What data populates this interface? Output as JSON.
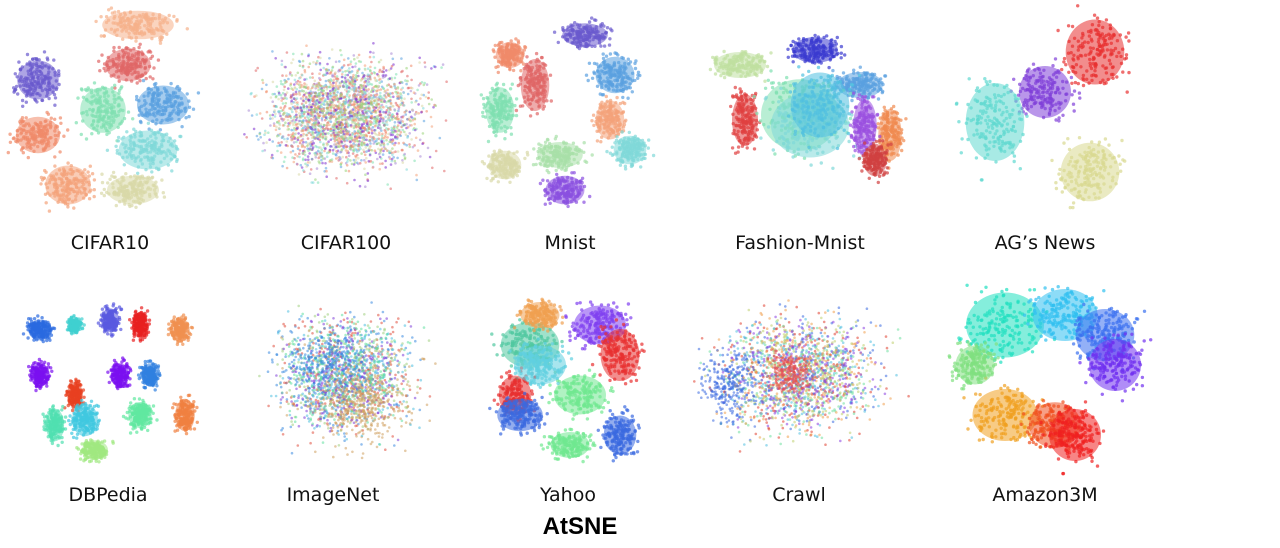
{
  "figure_title": "AtSNE",
  "chart_data": [
    {
      "type": "scatter",
      "title": "CIFAR10",
      "palette": [
        "#6a5acd",
        "#e06666",
        "#f4a27a",
        "#f08a6a",
        "#7fe0b0",
        "#80d8d8",
        "#5aa0e0",
        "#d9d9a8",
        "#a98ad6",
        "#f5b08a"
      ]
    },
    {
      "type": "scatter",
      "title": "CIFAR100",
      "palette": [
        "#e06666",
        "#5aa0e0",
        "#7fe0b0",
        "#a98ad6",
        "#f4a27a",
        "#80d8d8",
        "#d9d9a8",
        "#7b2fd0",
        "#f08a6a",
        "#9ad47a"
      ]
    },
    {
      "type": "scatter",
      "title": "Mnist",
      "palette": [
        "#6a5acd",
        "#5aa0e0",
        "#e06666",
        "#f4a27a",
        "#7fe0b0",
        "#80d8d8",
        "#d9d9a8",
        "#8a50e0",
        "#a8e0a8",
        "#f08a6a"
      ]
    },
    {
      "type": "scatter",
      "title": "Fashion-Mnist",
      "palette": [
        "#3a3ad0",
        "#e04040",
        "#f08a50",
        "#5aa0e0",
        "#7fe0b0",
        "#80d8d8",
        "#9a50e0",
        "#c0e0a0",
        "#50c0e0",
        "#d04040"
      ]
    },
    {
      "type": "scatter",
      "title": "AG’s News",
      "palette": [
        "#e83030",
        "#8040d8",
        "#60d8d0",
        "#d8d890"
      ]
    },
    {
      "type": "scatter",
      "title": "DBPedia",
      "palette": [
        "#2a6ae0",
        "#40c8e0",
        "#e82020",
        "#f09050",
        "#7a10f0",
        "#3080e0",
        "#e84020",
        "#50e0b0",
        "#60e8a0",
        "#a0e880",
        "#f08040",
        "#40d0d0",
        "#5a5ae0",
        "#e0a060"
      ]
    },
    {
      "type": "scatter",
      "title": "ImageNet",
      "palette": [
        "#3a8ae0",
        "#e05040",
        "#a0d080",
        "#d0a060",
        "#50c0e0",
        "#8040d8",
        "#60e0a0",
        "#f0a060",
        "#c0c060",
        "#2a6ae0"
      ]
    },
    {
      "type": "scatter",
      "title": "Yahoo",
      "palette": [
        "#e83030",
        "#3a6ae0",
        "#70e890",
        "#f0a050",
        "#60d0e0",
        "#8040f0",
        "#d0a050",
        "#2aa0e0",
        "#e85030",
        "#50c8a0"
      ]
    },
    {
      "type": "scatter",
      "title": "Crawl",
      "palette": [
        "#3a6ae0",
        "#e04030",
        "#70e0a0",
        "#f0a050",
        "#50c0e0",
        "#8a40e0",
        "#c0d070",
        "#e85050",
        "#30a0d0",
        "#a0e080"
      ]
    },
    {
      "type": "scatter",
      "title": "Amazon3M",
      "palette": [
        "#20e0c0",
        "#30c0f0",
        "#3a70f0",
        "#7030f0",
        "#f0a020",
        "#f05020",
        "#f02020",
        "#80e080"
      ]
    }
  ]
}
